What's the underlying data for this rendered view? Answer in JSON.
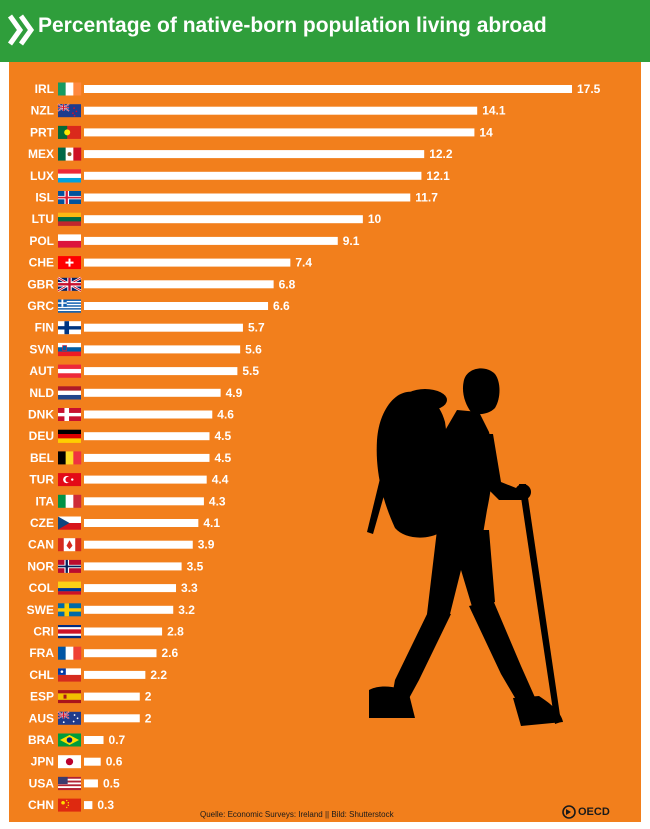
{
  "header": {
    "title": "Percentage of native-born population living abroad",
    "background_color": "#2f9e3b",
    "icon": "double-chevron-icon"
  },
  "chart_data": {
    "type": "bar",
    "orientation": "horizontal",
    "title": "Percentage of native-born population living abroad",
    "xlabel": "",
    "ylabel": "",
    "categories": [
      "IRL",
      "NZL",
      "PRT",
      "MEX",
      "LUX",
      "ISL",
      "LTU",
      "POL",
      "CHE",
      "GBR",
      "GRC",
      "FIN",
      "SVN",
      "AUT",
      "NLD",
      "DNK",
      "DEU",
      "BEL",
      "TUR",
      "ITA",
      "CZE",
      "CAN",
      "NOR",
      "COL",
      "SWE",
      "CRI",
      "FRA",
      "CHL",
      "ESP",
      "AUS",
      "BRA",
      "JPN",
      "USA",
      "CHN"
    ],
    "values": [
      "17.5",
      "14.1",
      "14",
      "12.2",
      "12.1",
      "11.7",
      "10",
      "9.1",
      "7.4",
      "6.8",
      "6.6",
      "5.7",
      "5.6",
      "5.5",
      "4.9",
      "4.6",
      "4.5",
      "4.5",
      "4.4",
      "4.3",
      "4.1",
      "3.9",
      "3.5",
      "3.3",
      "3.2",
      "2.8",
      "2.6",
      "2.2",
      "2",
      "2",
      "0.7",
      "0.6",
      "0.5",
      "0.3"
    ],
    "xlim": [
      0,
      17.5
    ],
    "grid": false,
    "legend": "none",
    "bar_color": "#ffffff",
    "background_color": "#f27f1c"
  },
  "footer": {
    "source": "Quelle: Economic Surveys: Ireland || Bild: Shutterstock",
    "logo_text": "OECD"
  }
}
